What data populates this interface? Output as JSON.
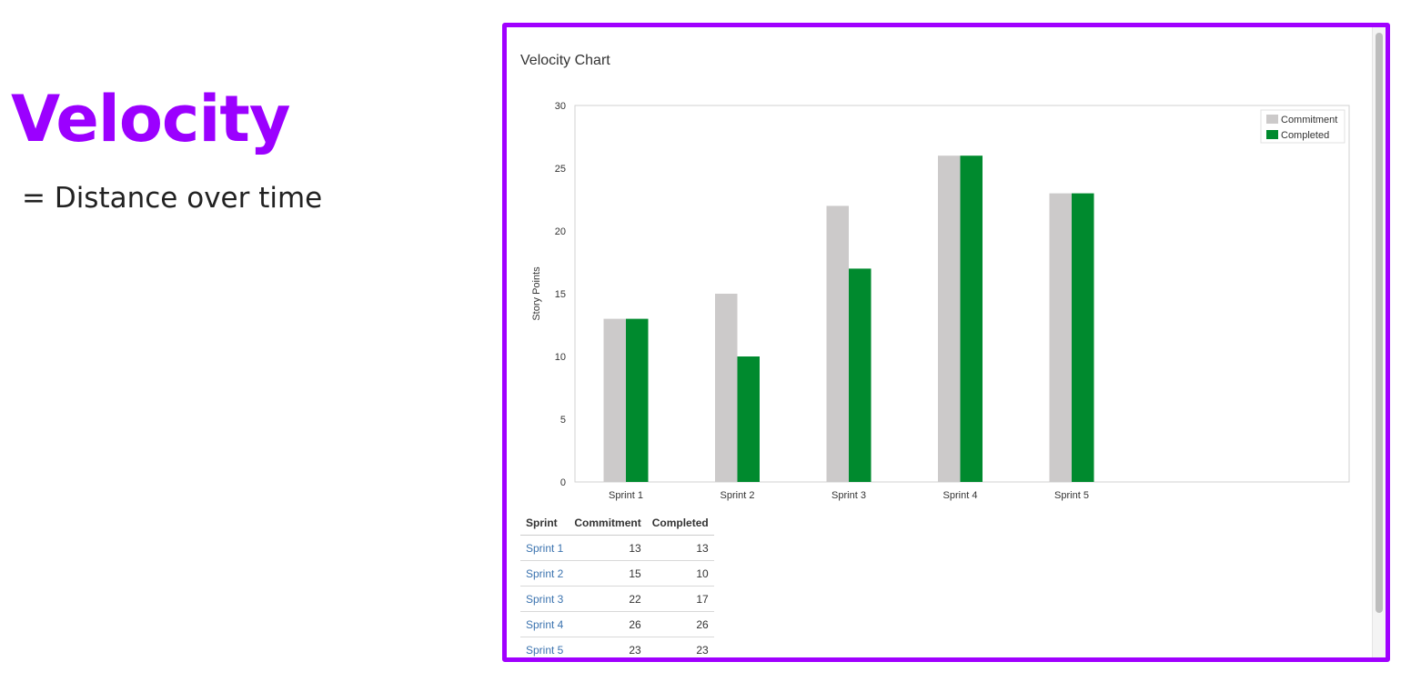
{
  "slide": {
    "title": "Velocity",
    "subtitle": "= Distance over time"
  },
  "colors": {
    "accent": "#a000ff",
    "commitment": "#cccaca",
    "completed": "#008a2e",
    "link": "#3b73af"
  },
  "chart_data": {
    "type": "bar",
    "title": "Velocity Chart",
    "xlabel": "",
    "ylabel": "Story Points",
    "ylim": [
      0,
      30
    ],
    "yticks": [
      0,
      5,
      10,
      15,
      20,
      25,
      30
    ],
    "categories": [
      "Sprint 1",
      "Sprint 2",
      "Sprint 3",
      "Sprint 4",
      "Sprint 5"
    ],
    "series": [
      {
        "name": "Commitment",
        "values": [
          13,
          15,
          22,
          26,
          23
        ]
      },
      {
        "name": "Completed",
        "values": [
          13,
          10,
          17,
          26,
          23
        ]
      }
    ],
    "legend_position": "top-right",
    "grid": false
  },
  "table": {
    "headers": [
      "Sprint",
      "Commitment",
      "Completed"
    ],
    "rows": [
      [
        "Sprint 1",
        "13",
        "13"
      ],
      [
        "Sprint 2",
        "15",
        "10"
      ],
      [
        "Sprint 3",
        "22",
        "17"
      ],
      [
        "Sprint 4",
        "26",
        "26"
      ],
      [
        "Sprint 5",
        "23",
        "23"
      ]
    ]
  }
}
